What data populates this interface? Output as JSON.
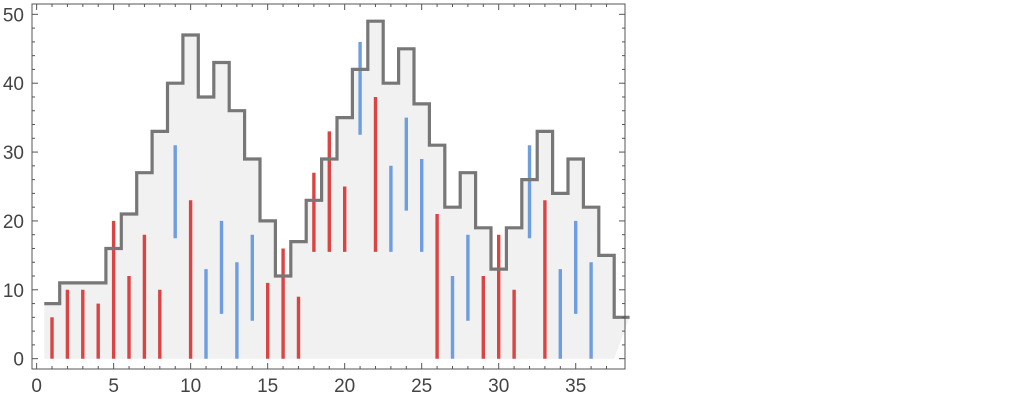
{
  "chart_data": {
    "type": "bar",
    "title": "",
    "xlabel": "",
    "ylabel": "",
    "xlim": [
      -0.3,
      38.2
    ],
    "ylim": [
      -1.5,
      51.5
    ],
    "xticks": [
      0,
      5,
      10,
      15,
      20,
      25,
      30,
      35
    ],
    "yticks": [
      0,
      10,
      20,
      30,
      40,
      50
    ],
    "grid": false,
    "colors": {
      "increase": "#dc4343",
      "decrease": "#6f9ee0",
      "envelope": "#777777",
      "fill": "#f1f1f1",
      "frame": "#555555"
    },
    "envelope": {
      "x_start": 0.5,
      "x_end": 37.5,
      "levels": [
        8,
        11,
        11,
        11,
        16,
        21,
        27,
        33,
        40,
        47,
        38,
        43,
        36,
        29,
        20,
        12,
        17,
        23,
        29,
        35,
        42,
        49,
        40,
        45,
        37,
        31,
        22,
        27,
        19,
        13,
        19,
        26,
        33,
        24,
        29,
        22,
        15,
        6
      ]
    },
    "series": [
      {
        "name": "",
        "color_key": "increase",
        "bars": [
          {
            "x": 1,
            "low": 0,
            "high": 6
          },
          {
            "x": 2,
            "low": 0,
            "high": 10
          },
          {
            "x": 3,
            "low": 0,
            "high": 10
          },
          {
            "x": 4,
            "low": 0,
            "high": 8
          },
          {
            "x": 5,
            "low": 0,
            "high": 20
          },
          {
            "x": 6,
            "low": 0,
            "high": 12
          },
          {
            "x": 7,
            "low": 0,
            "high": 18
          },
          {
            "x": 8,
            "low": 0,
            "high": 10
          },
          {
            "x": 10,
            "low": 0,
            "high": 23
          },
          {
            "x": 15,
            "low": 0,
            "high": 11
          },
          {
            "x": 16,
            "low": 0,
            "high": 16
          },
          {
            "x": 17,
            "low": 0,
            "high": 9
          },
          {
            "x": 18,
            "low": 15.5,
            "high": 27
          },
          {
            "x": 19,
            "low": 15.5,
            "high": 33
          },
          {
            "x": 20,
            "low": 15.5,
            "high": 25
          },
          {
            "x": 22,
            "low": 15.5,
            "high": 38
          },
          {
            "x": 26,
            "low": 0,
            "high": 21
          },
          {
            "x": 29,
            "low": 0,
            "high": 12
          },
          {
            "x": 30,
            "low": 0,
            "high": 18
          },
          {
            "x": 31,
            "low": 0,
            "high": 10
          },
          {
            "x": 33,
            "low": 0,
            "high": 23
          }
        ]
      },
      {
        "name": "",
        "color_key": "decrease",
        "bars": [
          {
            "x": 9,
            "low": 17.5,
            "high": 31
          },
          {
            "x": 11,
            "low": 0,
            "high": 13
          },
          {
            "x": 12,
            "low": 6.5,
            "high": 20
          },
          {
            "x": 13,
            "low": 0,
            "high": 14
          },
          {
            "x": 14,
            "low": 5.5,
            "high": 18
          },
          {
            "x": 21,
            "low": 32.5,
            "high": 46
          },
          {
            "x": 23,
            "low": 15.5,
            "high": 28
          },
          {
            "x": 24,
            "low": 21.5,
            "high": 35
          },
          {
            "x": 25,
            "low": 15.5,
            "high": 29
          },
          {
            "x": 27,
            "low": 0,
            "high": 12
          },
          {
            "x": 28,
            "low": 5.5,
            "high": 18
          },
          {
            "x": 32,
            "low": 17.5,
            "high": 31
          },
          {
            "x": 34,
            "low": 0,
            "high": 13
          },
          {
            "x": 35,
            "low": 6.5,
            "high": 20
          },
          {
            "x": 36,
            "low": 0,
            "high": 14
          }
        ]
      }
    ]
  }
}
